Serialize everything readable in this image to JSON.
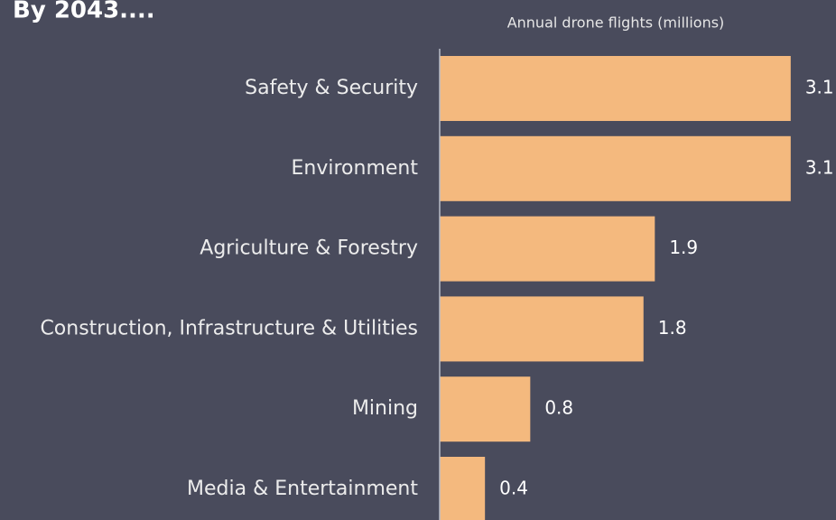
{
  "chart_data": {
    "type": "bar",
    "orientation": "horizontal",
    "title": "By 2043....",
    "xlabel": "Annual drone flights (millions)",
    "categories": [
      "Safety & Security",
      "Environment",
      "Agriculture & Forestry",
      "Construction, Infrastructure & Utilities",
      "Mining",
      "Media & Entertainment"
    ],
    "values": [
      3.1,
      3.1,
      1.9,
      1.8,
      0.8,
      0.4
    ],
    "color": "#f4b97e",
    "xlim": [
      0,
      3.5
    ],
    "grid": false
  }
}
